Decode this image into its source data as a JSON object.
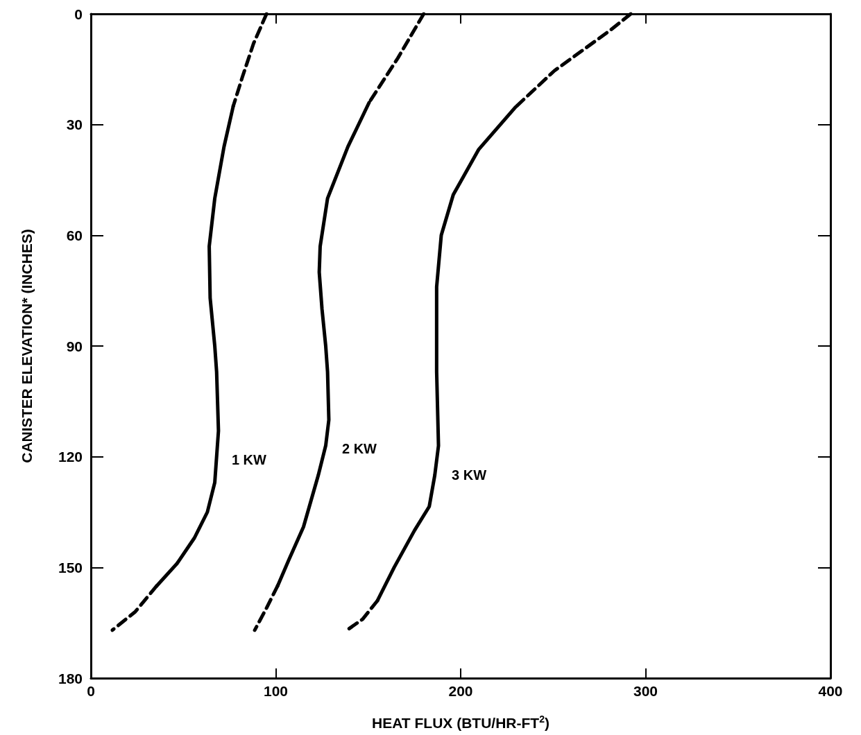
{
  "chart_data": {
    "type": "line",
    "xlabel": "HEAT FLUX (BTU/HR-FT$^{2}$)",
    "ylabel": "CANISTER ELEVATION* (INCHES)",
    "xlim": [
      0,
      400
    ],
    "xticks": [
      0,
      100,
      200,
      300,
      400
    ],
    "ylim": [
      180,
      0
    ],
    "yticks": [
      0,
      30,
      60,
      90,
      120,
      150,
      180
    ],
    "grid": false,
    "legend": false,
    "marker": "none",
    "series": [
      {
        "color": "#000000",
        "line_style": "dashed",
        "x": [
          95,
          88,
          82,
          77
        ],
        "values": [
          0,
          8,
          17,
          25
        ]
      },
      {
        "name": "1 KW",
        "color": "#000000",
        "line_style": "solid",
        "x": [
          77,
          72,
          67,
          64,
          64.5,
          67,
          68,
          69,
          67,
          63,
          56,
          46.5,
          35.6
        ],
        "values": [
          25,
          36,
          50,
          63,
          77,
          90,
          97,
          113,
          127,
          135,
          142,
          149,
          155
        ]
      },
      {
        "color": "#000000",
        "line_style": "dashed",
        "x": [
          35.6,
          24,
          11.6
        ],
        "values": [
          155,
          162,
          167
        ]
      },
      {
        "color": "#000000",
        "line_style": "dashed",
        "x": [
          180,
          166,
          150.5
        ],
        "values": [
          0,
          12,
          24
        ]
      },
      {
        "name": "2 KW",
        "color": "#000000",
        "line_style": "solid",
        "x": [
          150.5,
          139,
          128,
          124,
          123.5,
          125,
          127,
          128,
          128.7,
          127,
          123,
          115,
          107,
          101
        ],
        "values": [
          24,
          36,
          50,
          63,
          70,
          80,
          90,
          97,
          110,
          117,
          125,
          139,
          148,
          155
        ]
      },
      {
        "color": "#000000",
        "line_style": "dashed",
        "x": [
          101,
          95,
          88.6
        ],
        "values": [
          155,
          161,
          167
        ]
      },
      {
        "color": "#000000",
        "line_style": "dashed",
        "x": [
          292,
          281,
          250.7,
          229.6
        ],
        "values": [
          0,
          4.4,
          15.4,
          25.3
        ]
      },
      {
        "name": "3 KW",
        "color": "#000000",
        "line_style": "solid",
        "x": [
          229.6,
          209.8,
          196,
          189.5,
          187,
          187,
          187,
          188,
          186,
          183,
          175,
          164,
          155
        ],
        "values": [
          25.3,
          36.7,
          49,
          60,
          74,
          89.5,
          97,
          117,
          125,
          133.5,
          140,
          150,
          159
        ]
      },
      {
        "color": "#000000",
        "line_style": "dashed",
        "x": [
          155,
          147,
          138.5
        ],
        "values": [
          159,
          164,
          167
        ]
      }
    ]
  }
}
